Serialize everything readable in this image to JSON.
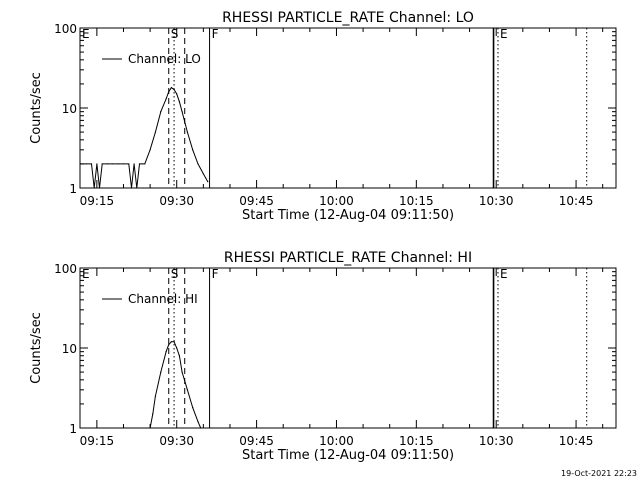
{
  "footer": {
    "date_stamp": "19-Oct-2021 22:23"
  },
  "chart_data": [
    {
      "type": "line",
      "title": "RHESSI PARTICLE_RATE Channel: LO",
      "xlabel": "Start Time (12-Aug-04 09:11:50)",
      "ylabel": "Counts/sec",
      "yscale": "log",
      "ylim": [
        1,
        100
      ],
      "xlim": [
        "09:11:50",
        "10:52:30"
      ],
      "x_tick_labels": [
        "09:15",
        "09:30",
        "09:45",
        "10:00",
        "10:15",
        "10:30",
        "10:45"
      ],
      "x_ticks": [
        "09:15",
        "09:30",
        "09:45",
        "10:00",
        "10:15",
        "10:30",
        "10:45"
      ],
      "y_tick_labels": [
        "1",
        "10",
        "100"
      ],
      "legend": {
        "entries": [
          "Channel: LO"
        ],
        "placement": "top-left"
      },
      "series": [
        {
          "name": "Channel: LO",
          "x": [
            "09:11:50",
            "09:13:00",
            "09:14:00",
            "09:14:30",
            "09:15:00",
            "09:15:30",
            "09:16:00",
            "09:17:00",
            "09:18:00",
            "09:19:00",
            "09:20:00",
            "09:21:00",
            "09:21:30",
            "09:22:00",
            "09:22:30",
            "09:23:00",
            "09:23:30",
            "09:24:00",
            "09:25:00",
            "09:26:00",
            "09:27:00",
            "09:28:00",
            "09:28:30",
            "09:29:00",
            "09:29:30",
            "09:30:00",
            "09:30:30",
            "09:31:00",
            "09:32:00",
            "09:33:00",
            "09:34:00",
            "09:35:00",
            "09:35:50"
          ],
          "y": [
            2,
            2,
            2,
            1,
            2,
            1,
            2,
            2,
            2,
            2,
            2,
            2,
            1,
            2,
            1,
            2,
            2,
            2,
            3,
            5,
            9,
            13,
            16,
            18,
            17,
            15,
            12,
            9,
            5,
            3,
            2,
            1.5,
            1.2
          ]
        }
      ],
      "annotations": [
        {
          "label": "E",
          "x": "09:11:50",
          "line": "none"
        },
        {
          "label": "S",
          "x": "09:28:30",
          "line": "dashed"
        },
        {
          "label": "",
          "x": "09:29:30",
          "line": "dotted"
        },
        {
          "label": "",
          "x": "09:31:30",
          "line": "dashed"
        },
        {
          "label": "F",
          "x": "09:36:10",
          "line": "solid"
        },
        {
          "label": "",
          "x": "10:29:30",
          "line": "solid"
        },
        {
          "label": "E",
          "x": "10:30:20",
          "line": "dotted"
        },
        {
          "label": "",
          "x": "10:47:00",
          "line": "dotted"
        }
      ]
    },
    {
      "type": "line",
      "title": "RHESSI PARTICLE_RATE Channel: HI",
      "xlabel": "Start Time (12-Aug-04 09:11:50)",
      "ylabel": "Counts/sec",
      "yscale": "log",
      "ylim": [
        1,
        100
      ],
      "xlim": [
        "09:11:50",
        "10:52:30"
      ],
      "x_tick_labels": [
        "09:15",
        "09:30",
        "09:45",
        "10:00",
        "10:15",
        "10:30",
        "10:45"
      ],
      "x_ticks": [
        "09:15",
        "09:30",
        "09:45",
        "10:00",
        "10:15",
        "10:30",
        "10:45"
      ],
      "y_tick_labels": [
        "1",
        "10",
        "100"
      ],
      "legend": {
        "entries": [
          "Channel: HI"
        ],
        "placement": "top-left"
      },
      "series": [
        {
          "name": "Channel: HI",
          "x": [
            "09:25:00",
            "09:25:30",
            "09:26:00",
            "09:27:00",
            "09:28:00",
            "09:28:30",
            "09:29:00",
            "09:29:30",
            "09:30:00",
            "09:30:30",
            "09:31:00",
            "09:32:00",
            "09:33:00",
            "09:34:00",
            "09:34:30"
          ],
          "y": [
            1,
            1.5,
            2.5,
            5,
            9,
            11,
            12,
            12,
            10,
            8,
            5,
            3,
            1.8,
            1.2,
            1
          ]
        }
      ],
      "annotations": [
        {
          "label": "E",
          "x": "09:11:50",
          "line": "none"
        },
        {
          "label": "S",
          "x": "09:28:30",
          "line": "dashed"
        },
        {
          "label": "",
          "x": "09:29:30",
          "line": "dotted"
        },
        {
          "label": "",
          "x": "09:31:30",
          "line": "dashed"
        },
        {
          "label": "F",
          "x": "09:36:10",
          "line": "solid"
        },
        {
          "label": "",
          "x": "10:29:30",
          "line": "solid"
        },
        {
          "label": "E",
          "x": "10:30:20",
          "line": "dotted"
        },
        {
          "label": "",
          "x": "10:47:00",
          "line": "dotted"
        }
      ]
    }
  ]
}
